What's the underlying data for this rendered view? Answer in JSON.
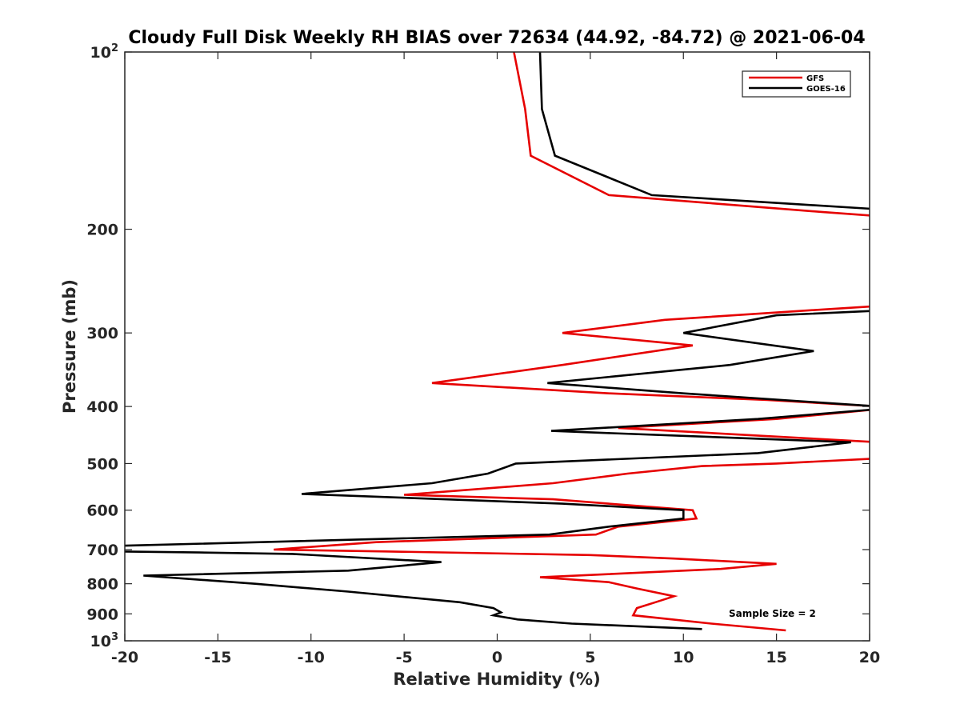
{
  "chart_data": {
    "type": "line",
    "title": "Cloudy Full Disk Weekly RH BIAS over 72634 (44.92, -84.72) @ 2021-06-04",
    "xlabel": "Relative Humidity (%)",
    "ylabel": "Pressure (mb)",
    "xlim": [
      -20,
      20
    ],
    "ylim": [
      100,
      1000
    ],
    "y_scale": "log",
    "y_reversed": true,
    "grid": false,
    "legend_position": "top-right",
    "x_ticks": [
      -20,
      -15,
      -10,
      -5,
      0,
      5,
      10,
      15,
      20
    ],
    "y_tick_labels": [
      {
        "value": 100,
        "base": "10",
        "exp": "2"
      },
      {
        "value": 200,
        "text": "200"
      },
      {
        "value": 300,
        "text": "300"
      },
      {
        "value": 400,
        "text": "400"
      },
      {
        "value": 500,
        "text": "500"
      },
      {
        "value": 600,
        "text": "600"
      },
      {
        "value": 700,
        "text": "700"
      },
      {
        "value": 800,
        "text": "800"
      },
      {
        "value": 900,
        "text": "900"
      },
      {
        "value": 1000,
        "base": "10",
        "exp": "3"
      }
    ],
    "series": [
      {
        "name": "GFS",
        "color": "#e60000",
        "points": [
          [
            0.9,
            100
          ],
          [
            1.5,
            125
          ],
          [
            1.8,
            150
          ],
          [
            6.0,
            175
          ],
          [
            17.5,
            187
          ],
          [
            20.5,
            190
          ],
          [
            20.5,
            270
          ],
          [
            16.5,
            275
          ],
          [
            9.0,
            285
          ],
          [
            3.5,
            300
          ],
          [
            10.5,
            315
          ],
          [
            3.5,
            340
          ],
          [
            -3.5,
            365
          ],
          [
            6.0,
            380
          ],
          [
            14.5,
            390
          ],
          [
            20.5,
            400
          ],
          [
            20.5,
            404
          ],
          [
            15.0,
            420
          ],
          [
            6.5,
            435
          ],
          [
            20.5,
            460
          ],
          [
            20.5,
            490
          ],
          [
            15.0,
            500
          ],
          [
            11.0,
            505
          ],
          [
            7.0,
            520
          ],
          [
            3.0,
            540
          ],
          [
            -5.0,
            565
          ],
          [
            3.0,
            575
          ],
          [
            6.0,
            585
          ],
          [
            10.5,
            600
          ],
          [
            10.7,
            620
          ],
          [
            6.5,
            640
          ],
          [
            5.3,
            660
          ],
          [
            -6.5,
            680
          ],
          [
            -12.0,
            700
          ],
          [
            -6.0,
            705
          ],
          [
            5.0,
            715
          ],
          [
            9.5,
            725
          ],
          [
            15.0,
            740
          ],
          [
            12.0,
            755
          ],
          [
            2.3,
            780
          ],
          [
            6.0,
            795
          ],
          [
            7.5,
            815
          ],
          [
            9.5,
            840
          ],
          [
            8.5,
            860
          ],
          [
            7.5,
            880
          ],
          [
            7.3,
            905
          ],
          [
            11.5,
            935
          ],
          [
            15.5,
            960
          ]
        ]
      },
      {
        "name": "GOES-16",
        "color": "#000000",
        "points": [
          [
            2.3,
            100
          ],
          [
            2.4,
            125
          ],
          [
            3.1,
            150
          ],
          [
            8.3,
            175
          ],
          [
            20.5,
            185
          ],
          [
            20.5,
            275
          ],
          [
            15.0,
            280
          ],
          [
            10.0,
            300
          ],
          [
            17.0,
            322
          ],
          [
            12.5,
            340
          ],
          [
            2.7,
            365
          ],
          [
            10.0,
            380
          ],
          [
            20.5,
            400
          ],
          [
            20.5,
            404
          ],
          [
            14.0,
            420
          ],
          [
            2.9,
            440
          ],
          [
            19.0,
            460
          ],
          [
            14.0,
            480
          ],
          [
            1.0,
            500
          ],
          [
            -0.5,
            520
          ],
          [
            -3.5,
            540
          ],
          [
            -10.5,
            563
          ],
          [
            3.5,
            585
          ],
          [
            10.0,
            600
          ],
          [
            10.0,
            620
          ],
          [
            6.0,
            640
          ],
          [
            2.8,
            660
          ],
          [
            -20.5,
            690
          ],
          [
            -20.5,
            705
          ],
          [
            -16.0,
            708
          ],
          [
            -11.0,
            712
          ],
          [
            -3.0,
            735
          ],
          [
            -8.0,
            760
          ],
          [
            -19.0,
            775
          ],
          [
            -13.0,
            800
          ],
          [
            -8.0,
            825
          ],
          [
            -2.0,
            860
          ],
          [
            -0.2,
            880
          ],
          [
            0.2,
            895
          ],
          [
            -0.2,
            905
          ],
          [
            1.1,
            920
          ],
          [
            4.0,
            935
          ],
          [
            11.0,
            955
          ]
        ]
      }
    ],
    "annotations": [
      {
        "text": "Sample Size = 2"
      }
    ]
  }
}
